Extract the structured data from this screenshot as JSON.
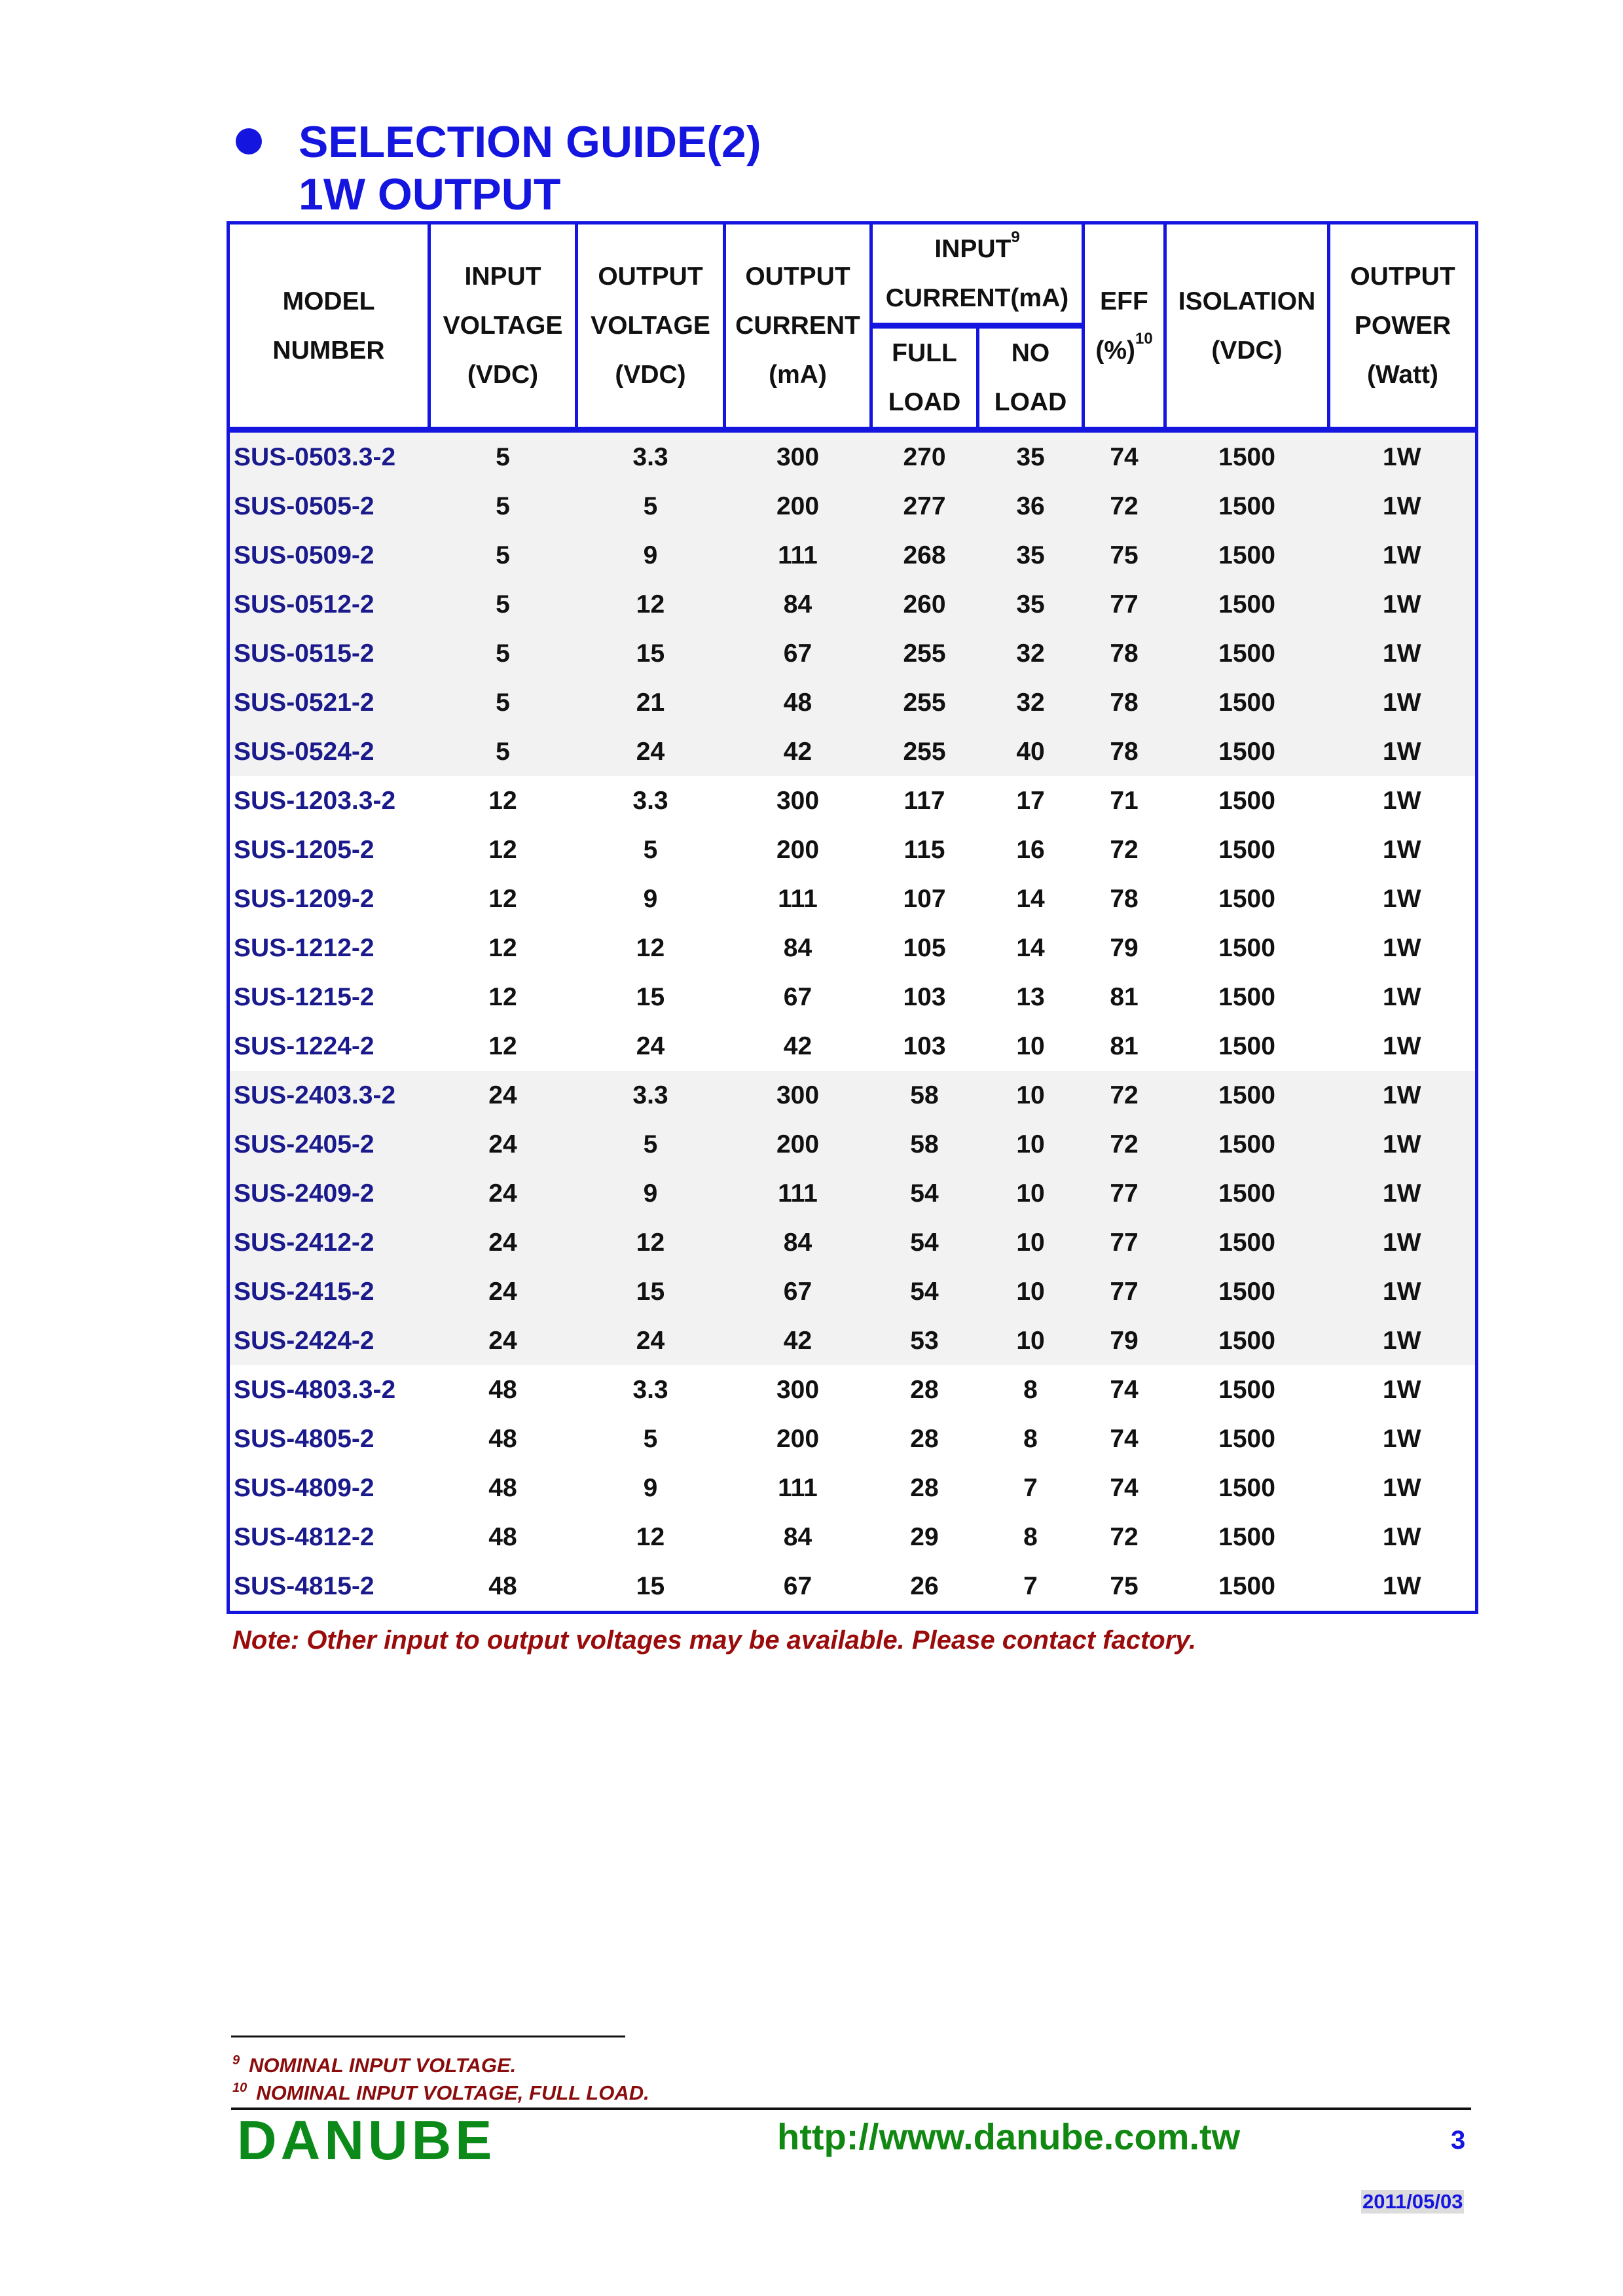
{
  "heading": {
    "line1": "SELECTION GUIDE(2)",
    "line2": "1W OUTPUT"
  },
  "colors": {
    "accent": "#1515e0",
    "model_text": "#1a1a8c",
    "note": "#9a0c0c",
    "brand": "#0b8a1a",
    "shade": "#f2f2f2"
  },
  "table": {
    "headers": {
      "model": [
        "MODEL",
        "NUMBER"
      ],
      "input_voltage": [
        "INPUT",
        "VOLTAGE",
        "(VDC)"
      ],
      "output_voltage": [
        "OUTPUT",
        "VOLTAGE",
        "(VDC)"
      ],
      "output_current": [
        "OUTPUT",
        "CURRENT",
        "(mA)"
      ],
      "input_current": {
        "line1": "INPUT",
        "sup": "9",
        "line2": "CURRENT(mA)"
      },
      "full_load": [
        "FULL",
        "LOAD"
      ],
      "no_load": [
        "NO",
        "LOAD"
      ],
      "eff": {
        "line1": "EFF",
        "line2": "(%)",
        "sup": "10"
      },
      "isolation": [
        "ISOLATION",
        "(VDC)"
      ],
      "output_power": [
        "OUTPUT",
        "POWER",
        "(Watt)"
      ]
    },
    "rows": [
      [
        "SUS-0503.3-2",
        "5",
        "3.3",
        "300",
        "270",
        "35",
        "74",
        "1500",
        "1W"
      ],
      [
        "SUS-0505-2",
        "5",
        "5",
        "200",
        "277",
        "36",
        "72",
        "1500",
        "1W"
      ],
      [
        "SUS-0509-2",
        "5",
        "9",
        "111",
        "268",
        "35",
        "75",
        "1500",
        "1W"
      ],
      [
        "SUS-0512-2",
        "5",
        "12",
        "84",
        "260",
        "35",
        "77",
        "1500",
        "1W"
      ],
      [
        "SUS-0515-2",
        "5",
        "15",
        "67",
        "255",
        "32",
        "78",
        "1500",
        "1W"
      ],
      [
        "SUS-0521-2",
        "5",
        "21",
        "48",
        "255",
        "32",
        "78",
        "1500",
        "1W"
      ],
      [
        "SUS-0524-2",
        "5",
        "24",
        "42",
        "255",
        "40",
        "78",
        "1500",
        "1W"
      ],
      [
        "SUS-1203.3-2",
        "12",
        "3.3",
        "300",
        "117",
        "17",
        "71",
        "1500",
        "1W"
      ],
      [
        "SUS-1205-2",
        "12",
        "5",
        "200",
        "115",
        "16",
        "72",
        "1500",
        "1W"
      ],
      [
        "SUS-1209-2",
        "12",
        "9",
        "111",
        "107",
        "14",
        "78",
        "1500",
        "1W"
      ],
      [
        "SUS-1212-2",
        "12",
        "12",
        "84",
        "105",
        "14",
        "79",
        "1500",
        "1W"
      ],
      [
        "SUS-1215-2",
        "12",
        "15",
        "67",
        "103",
        "13",
        "81",
        "1500",
        "1W"
      ],
      [
        "SUS-1224-2",
        "12",
        "24",
        "42",
        "103",
        "10",
        "81",
        "1500",
        "1W"
      ],
      [
        "SUS-2403.3-2",
        "24",
        "3.3",
        "300",
        "58",
        "10",
        "72",
        "1500",
        "1W"
      ],
      [
        "SUS-2405-2",
        "24",
        "5",
        "200",
        "58",
        "10",
        "72",
        "1500",
        "1W"
      ],
      [
        "SUS-2409-2",
        "24",
        "9",
        "111",
        "54",
        "10",
        "77",
        "1500",
        "1W"
      ],
      [
        "SUS-2412-2",
        "24",
        "12",
        "84",
        "54",
        "10",
        "77",
        "1500",
        "1W"
      ],
      [
        "SUS-2415-2",
        "24",
        "15",
        "67",
        "54",
        "10",
        "77",
        "1500",
        "1W"
      ],
      [
        "SUS-2424-2",
        "24",
        "24",
        "42",
        "53",
        "10",
        "79",
        "1500",
        "1W"
      ],
      [
        "SUS-4803.3-2",
        "48",
        "3.3",
        "300",
        "28",
        "8",
        "74",
        "1500",
        "1W"
      ],
      [
        "SUS-4805-2",
        "48",
        "5",
        "200",
        "28",
        "8",
        "74",
        "1500",
        "1W"
      ],
      [
        "SUS-4809-2",
        "48",
        "9",
        "111",
        "28",
        "7",
        "74",
        "1500",
        "1W"
      ],
      [
        "SUS-4812-2",
        "48",
        "12",
        "84",
        "29",
        "8",
        "72",
        "1500",
        "1W"
      ],
      [
        "SUS-4815-2",
        "48",
        "15",
        "67",
        "26",
        "7",
        "75",
        "1500",
        "1W"
      ]
    ]
  },
  "note": "Note: Other input to output voltages may be available. Please contact factory.",
  "footnotes": [
    {
      "num": "9",
      "text": "NOMINAL INPUT VOLTAGE."
    },
    {
      "num": "10",
      "text": "NOMINAL INPUT VOLTAGE, FULL LOAD."
    }
  ],
  "footer": {
    "brand": "DANUBE",
    "url": "http://www.danube.com.tw",
    "page": "3",
    "date": "2011/05/03"
  }
}
